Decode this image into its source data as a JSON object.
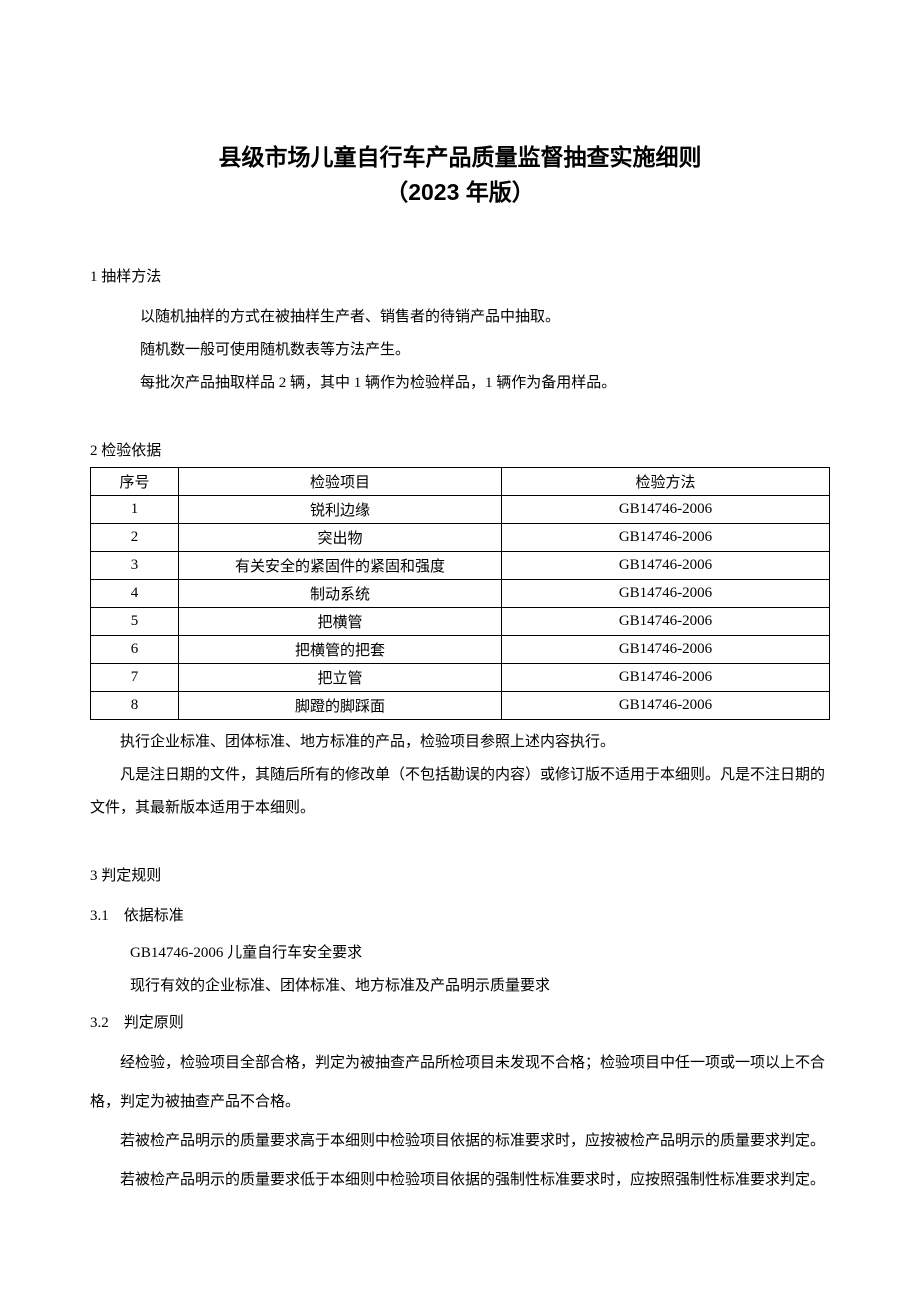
{
  "title": {
    "main": "县级市场儿童自行车产品质量监督抽查实施细则",
    "sub": "（2023 年版）"
  },
  "s1": {
    "heading": "1 抽样方法",
    "p1": "以随机抽样的方式在被抽样生产者、销售者的待销产品中抽取。",
    "p2": "随机数一般可使用随机数表等方法产生。",
    "p3": "每批次产品抽取样品 2 辆，其中 1 辆作为检验样品，1 辆作为备用样品。"
  },
  "s2": {
    "heading": "2 检验依据",
    "table": {
      "columns": [
        "序号",
        "检验项目",
        "检验方法"
      ],
      "rows": [
        [
          "1",
          "锐利边缘",
          "GB14746-2006"
        ],
        [
          "2",
          "突出物",
          "GB14746-2006"
        ],
        [
          "3",
          "有关安全的紧固件的紧固和强度",
          "GB14746-2006"
        ],
        [
          "4",
          "制动系统",
          "GB14746-2006"
        ],
        [
          "5",
          "把横管",
          "GB14746-2006"
        ],
        [
          "6",
          "把横管的把套",
          "GB14746-2006"
        ],
        [
          "7",
          "把立管",
          "GB14746-2006"
        ],
        [
          "8",
          "脚蹬的脚踩面",
          "GB14746-2006"
        ]
      ]
    },
    "note1": "执行企业标准、团体标准、地方标准的产品，检验项目参照上述内容执行。",
    "note2": "凡是注日期的文件，其随后所有的修改单（不包括勘误的内容）或修订版不适用于本细则。凡是不注日期的文件，其最新版本适用于本细则。"
  },
  "s3": {
    "heading": "3 判定规则",
    "s3_1": {
      "heading": "3.1　依据标准",
      "line1": "GB14746-2006 儿童自行车安全要求",
      "line2": "现行有效的企业标准、团体标准、地方标准及产品明示质量要求"
    },
    "s3_2": {
      "heading": "3.2　判定原则",
      "p1": "经检验，检验项目全部合格，判定为被抽查产品所检项目未发现不合格；检验项目中任一项或一项以上不合格，判定为被抽查产品不合格。",
      "p2": "若被检产品明示的质量要求高于本细则中检验项目依据的标准要求时，应按被检产品明示的质量要求判定。",
      "p3": "若被检产品明示的质量要求低于本细则中检验项目依据的强制性标准要求时，应按照强制性标准要求判定。"
    }
  }
}
